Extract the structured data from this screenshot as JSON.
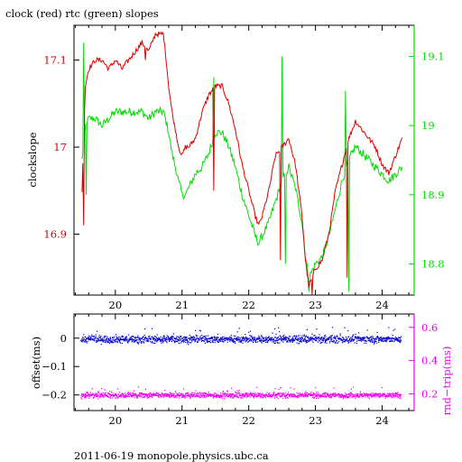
{
  "title": "clock (red) rtc (green) slopes",
  "footer": "2011-06-19  monopole.physics.ubc.ca",
  "colors": {
    "clock": "#dd0000",
    "rtc": "#00dd00",
    "offset": "#0000cc",
    "rndtrip": "#ee00ee",
    "axis": "#000000"
  },
  "chart_data": [
    {
      "type": "line",
      "xlim": [
        19.38,
        24.48
      ],
      "xticks": [
        20,
        21,
        22,
        23,
        24
      ],
      "left_axis": {
        "label": "clockslope",
        "ylim": [
          16.83,
          17.14
        ],
        "ticks": [
          16.9,
          17,
          17.1
        ],
        "tick_labels": [
          "16.9",
          "17",
          "17.1"
        ]
      },
      "right_axis": {
        "label": "",
        "ylim": [
          18.755,
          19.145
        ],
        "ticks": [
          18.8,
          18.9,
          19,
          19.1
        ],
        "tick_labels": [
          "18.8",
          "18.9",
          "19",
          "19.1"
        ]
      },
      "series": [
        {
          "name": "clock",
          "axis": "left",
          "x": [
            19.5,
            19.55,
            19.6,
            19.7,
            19.8,
            19.9,
            20.0,
            20.1,
            20.2,
            20.3,
            20.4,
            20.5,
            20.6,
            20.65,
            20.7,
            20.72,
            20.75,
            20.8,
            20.85,
            20.9,
            20.95,
            21.0,
            21.05,
            21.1,
            21.2,
            21.3,
            21.4,
            21.5,
            21.6,
            21.7,
            21.8,
            21.9,
            22.0,
            22.1,
            22.15,
            22.2,
            22.3,
            22.4,
            22.5,
            22.6,
            22.7,
            22.8,
            22.85,
            22.9,
            22.95,
            23.0,
            23.1,
            23.2,
            23.3,
            23.4,
            23.5,
            23.6,
            23.7,
            23.8,
            23.9,
            24.0,
            24.1,
            24.2,
            24.3
          ],
          "y": [
            16.95,
            17.07,
            17.09,
            17.1,
            17.1,
            17.09,
            17.1,
            17.09,
            17.1,
            17.11,
            17.12,
            17.11,
            17.13,
            17.13,
            17.13,
            17.13,
            17.11,
            17.07,
            17.04,
            17.02,
            17.0,
            16.99,
            17.0,
            17.0,
            17.01,
            17.04,
            17.06,
            17.07,
            17.07,
            17.05,
            17.02,
            16.98,
            16.95,
            16.92,
            16.91,
            16.92,
            16.95,
            16.99,
            17.0,
            17.01,
            16.98,
            16.92,
            16.87,
            16.84,
            16.85,
            16.86,
            16.87,
            16.9,
            16.95,
            16.98,
            17.01,
            17.03,
            17.02,
            17.01,
            17.0,
            16.98,
            16.97,
            16.99,
            17.01
          ]
        },
        {
          "name": "rtc",
          "axis": "right",
          "x": [
            19.5,
            19.55,
            19.6,
            19.7,
            19.8,
            19.9,
            20.0,
            20.1,
            20.2,
            20.3,
            20.4,
            20.5,
            20.6,
            20.65,
            20.7,
            20.72,
            20.75,
            20.8,
            20.85,
            20.9,
            20.95,
            21.0,
            21.05,
            21.1,
            21.2,
            21.3,
            21.4,
            21.5,
            21.6,
            21.7,
            21.8,
            21.9,
            22.0,
            22.1,
            22.15,
            22.2,
            22.3,
            22.4,
            22.5,
            22.6,
            22.7,
            22.8,
            22.85,
            22.9,
            22.95,
            23.0,
            23.1,
            23.2,
            23.3,
            23.4,
            23.5,
            23.6,
            23.7,
            23.8,
            23.9,
            24.0,
            24.1,
            24.2,
            24.3
          ],
          "y": [
            18.95,
            19.0,
            19.01,
            19.01,
            19.0,
            19.01,
            19.02,
            19.02,
            19.02,
            19.02,
            19.02,
            19.01,
            19.02,
            19.02,
            19.02,
            19.02,
            19.01,
            18.99,
            18.96,
            18.94,
            18.92,
            18.9,
            18.9,
            18.91,
            18.93,
            18.94,
            18.96,
            18.99,
            18.99,
            18.97,
            18.94,
            18.9,
            18.87,
            18.84,
            18.83,
            18.84,
            18.86,
            18.89,
            18.92,
            18.94,
            18.91,
            18.86,
            18.81,
            18.78,
            18.79,
            18.8,
            18.81,
            18.84,
            18.88,
            18.92,
            18.95,
            18.97,
            18.96,
            18.95,
            18.94,
            18.93,
            18.92,
            18.93,
            18.94
          ]
        }
      ]
    },
    {
      "type": "scatter",
      "xlim": [
        19.38,
        24.48
      ],
      "xticks": [
        20,
        21,
        22,
        23,
        24
      ],
      "left_axis": {
        "label": "offset(ms)",
        "ylim": [
          -0.255,
          0.085
        ],
        "ticks": [
          0,
          -0.1,
          -0.2
        ],
        "tick_labels": [
          "0",
          "−0.1",
          "−0.2"
        ]
      },
      "right_axis": {
        "label": "rnd−trip(ms)",
        "ylim": [
          0.1,
          0.68
        ],
        "ticks": [
          0.2,
          0.4,
          0.6
        ],
        "tick_labels": [
          "0.2",
          "0.4",
          "0.6"
        ]
      },
      "series": [
        {
          "name": "offset",
          "axis": "left",
          "x_range": [
            19.48,
            24.28
          ],
          "center": -0.002,
          "spread": 0.01
        },
        {
          "name": "rnd-trip",
          "axis": "right",
          "x_range": [
            19.48,
            24.28
          ],
          "center": 0.195,
          "spread": 0.012
        }
      ]
    }
  ]
}
